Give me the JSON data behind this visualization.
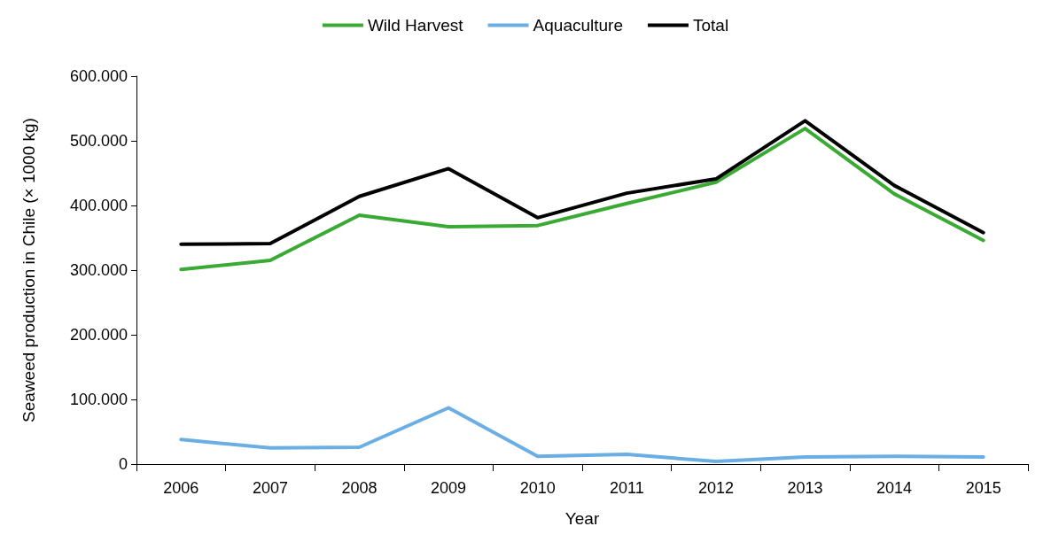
{
  "chart_data": {
    "type": "line",
    "xlabel": "Year",
    "ylabel": "Seaweed production in Chile (× 1000 kg)",
    "categories": [
      "2006",
      "2007",
      "2008",
      "2009",
      "2010",
      "2011",
      "2012",
      "2013",
      "2014",
      "2015"
    ],
    "series": [
      {
        "name": "Wild Harvest",
        "color": "#3aaa35",
        "values": [
          301000,
          315000,
          385000,
          367000,
          369000,
          403000,
          436000,
          519000,
          418000,
          346000
        ]
      },
      {
        "name": "Aquaculture",
        "color": "#6aaee4",
        "values": [
          38000,
          25000,
          26000,
          87000,
          12000,
          15000,
          4000,
          11000,
          12000,
          11000
        ]
      },
      {
        "name": "Total",
        "color": "#000000",
        "values": [
          340000,
          341000,
          414000,
          457000,
          381000,
          419000,
          441000,
          531000,
          431000,
          358000
        ]
      }
    ],
    "ylim": [
      0,
      600000
    ],
    "yticks": [
      0,
      {
        "value": 100000,
        "label": "100.000"
      },
      {
        "value": 200000,
        "label": "200.000"
      },
      {
        "value": 300000,
        "label": "300.000"
      },
      {
        "value": 400000,
        "label": "400.000"
      },
      {
        "value": 500000,
        "label": "500.000"
      },
      {
        "value": 600000,
        "label": "600.000"
      }
    ],
    "grid": false,
    "legend": "top",
    "marker": "none",
    "line_style": "solid"
  }
}
